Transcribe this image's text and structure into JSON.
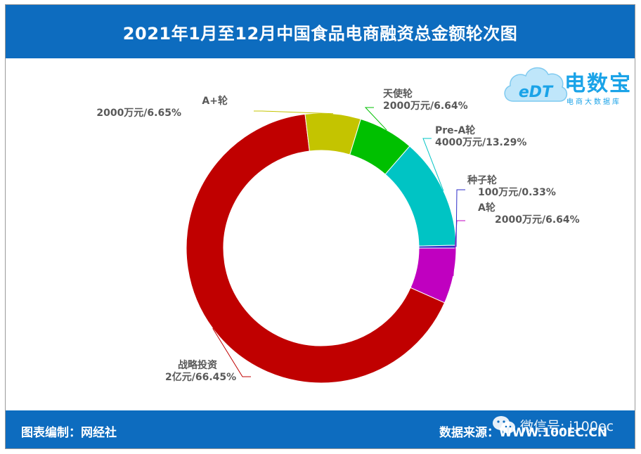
{
  "title": "2021年1月至12月中国食品电商融资总金额轮次图",
  "footer": {
    "credit": "图表编制：网经社",
    "source": "数据来源：WWW.100EC.CN",
    "wechat": "微信号: i100ec"
  },
  "logo": {
    "badge": "eDT",
    "name": "电数宝",
    "sub": "电商大数据库"
  },
  "colors": {
    "header": "#0d6cbf",
    "战略投资": "#c00000",
    "A+轮": "#c4c400",
    "天使轮": "#00c000",
    "Pre-A轮": "#00c4c4",
    "种子轮": "#2b2bc8",
    "A轮": "#c000c0"
  },
  "chart_data": {
    "type": "donut",
    "title": "2021年1月至12月中国食品电商融资总金额轮次图",
    "unit": "万元",
    "slices": [
      {
        "name": "A轮",
        "value": 2000,
        "amount_label": "2000万元",
        "percent": 6.64,
        "percent_label": "6.64%",
        "color": "#c000c0"
      },
      {
        "name": "战略投资",
        "value": 20000,
        "amount_label": "2亿元",
        "percent": 66.45,
        "percent_label": "66.45%",
        "color": "#c00000"
      },
      {
        "name": "A+轮",
        "value": 2000,
        "amount_label": "2000万元",
        "percent": 6.65,
        "percent_label": "6.65%",
        "color": "#c4c400"
      },
      {
        "name": "天使轮",
        "value": 2000,
        "amount_label": "2000万元",
        "percent": 6.64,
        "percent_label": "6.64%",
        "color": "#00c000"
      },
      {
        "name": "Pre-A轮",
        "value": 4000,
        "amount_label": "4000万元",
        "percent": 13.29,
        "percent_label": "13.29%",
        "color": "#00c4c4"
      },
      {
        "name": "种子轮",
        "value": 100,
        "amount_label": "100万元",
        "percent": 0.33,
        "percent_label": "0.33%",
        "color": "#2b2bc8"
      }
    ]
  }
}
